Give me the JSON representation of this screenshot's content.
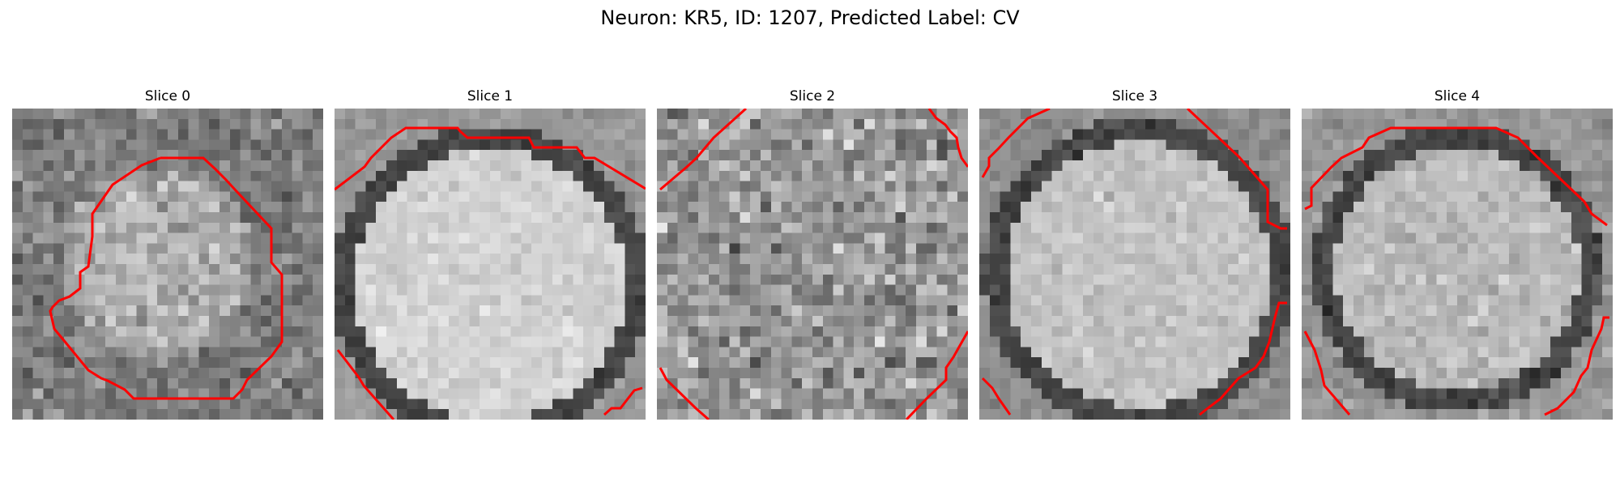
{
  "figure": {
    "title": "Neuron: KR5, ID: 1207, Predicted Label: CV"
  },
  "colors": {
    "contour": "#ff0000",
    "background": "#ffffff"
  },
  "panels": [
    {
      "title": "Slice 0"
    },
    {
      "title": "Slice 1"
    },
    {
      "title": "Slice 2"
    },
    {
      "title": "Slice 3"
    },
    {
      "title": "Slice 4"
    }
  ]
}
